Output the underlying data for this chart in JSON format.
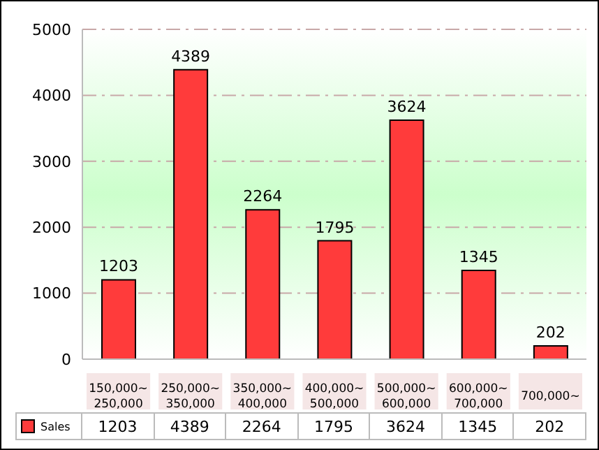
{
  "chart_data": {
    "type": "bar",
    "categories": [
      "150,000~250,000",
      "250,000~350,000",
      "350,000~400,000",
      "400,000~500,000",
      "500,000~600,000",
      "600,000~700,000",
      "700,000~"
    ],
    "series": [
      {
        "name": "Sales",
        "color": "#ff3b3b",
        "values": [
          1203,
          4389,
          2264,
          1795,
          3624,
          1345,
          202
        ]
      }
    ],
    "ylim": [
      0,
      5000
    ],
    "yticks": [
      0,
      1000,
      2000,
      3000,
      4000,
      5000
    ],
    "annotations": [
      "1203",
      "4389",
      "2264",
      "1795",
      "3624",
      "1345",
      "202"
    ],
    "grid": "y",
    "legend": "bottom",
    "data_labels": true
  }
}
